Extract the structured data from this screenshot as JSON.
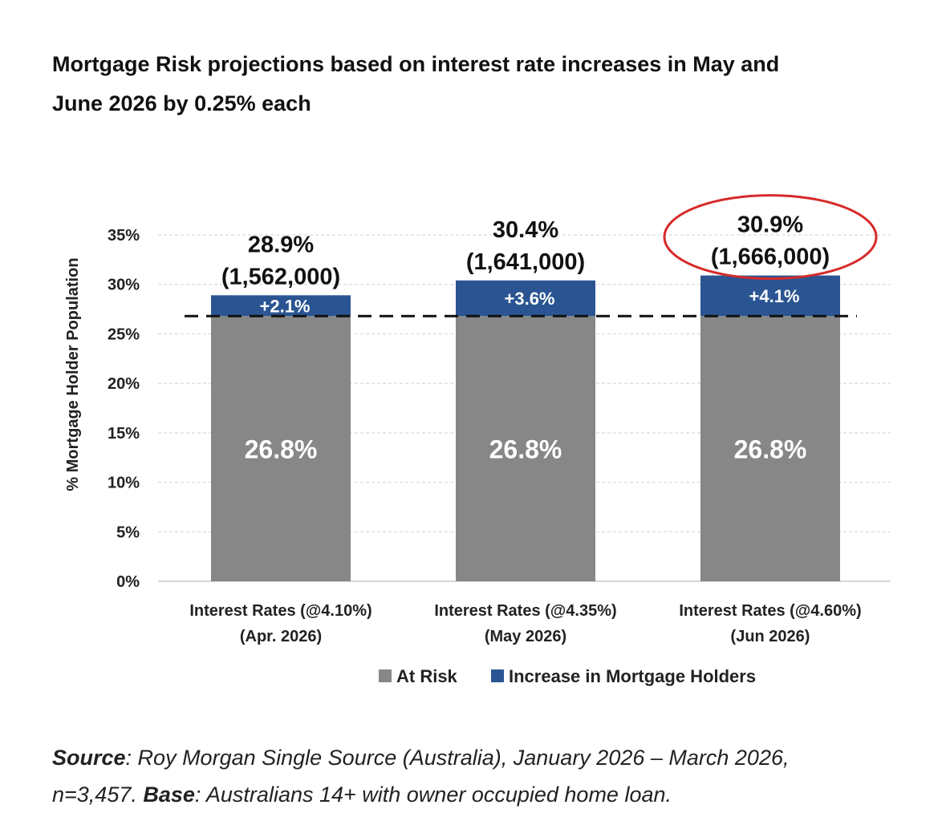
{
  "title": {
    "line1": "Mortgage Risk projections based on interest rate increases in May and",
    "line2": "June 2026 by 0.25% each"
  },
  "chart_data": {
    "type": "bar",
    "stacked": true,
    "ylabel": "% Mortgage Holder Population",
    "ylim": [
      0,
      35
    ],
    "yticks": [
      "0%",
      "5%",
      "10%",
      "15%",
      "20%",
      "25%",
      "30%",
      "35%"
    ],
    "grid": true,
    "categories": [
      [
        "Interest Rates (@4.10%)",
        "(Apr. 2026)"
      ],
      [
        "Interest Rates    (@4.35%)",
        "(May 2026)"
      ],
      [
        "Interest Rates    (@4.60%)",
        "(Jun 2026)"
      ]
    ],
    "series": [
      {
        "name": "At Risk",
        "color": "#878787",
        "values": [
          26.8,
          26.8,
          26.8
        ],
        "labels": [
          "26.8%",
          "26.8%",
          "26.8%"
        ]
      },
      {
        "name": "Increase in Mortgage Holders",
        "color": "#2a5592",
        "values": [
          2.1,
          3.6,
          4.1
        ],
        "labels": [
          "+2.1%",
          "+3.6%",
          "+4.1%"
        ]
      }
    ],
    "totals": [
      {
        "value": 28.9,
        "label": "28.9%",
        "count": "(1,562,000)"
      },
      {
        "value": 30.4,
        "label": "30.4%",
        "count": "(1,641,000)"
      },
      {
        "value": 30.9,
        "label": "30.9%",
        "count": "(1,666,000)"
      }
    ],
    "reference_line": {
      "value": 26.8,
      "style": "dashed",
      "color": "#111111"
    },
    "highlight": {
      "category_index": 2,
      "shape": "ellipse",
      "color": "#d62a2a"
    },
    "legend": {
      "placement": "bottom"
    }
  },
  "source": {
    "source_label": "Source",
    "source_text": ": Roy Morgan Single Source (Australia), January 2026 – March 2026,",
    "line2_start": "n=3,457. ",
    "base_label": "Base",
    "base_text": ": Australians 14+ with owner occupied home loan."
  }
}
